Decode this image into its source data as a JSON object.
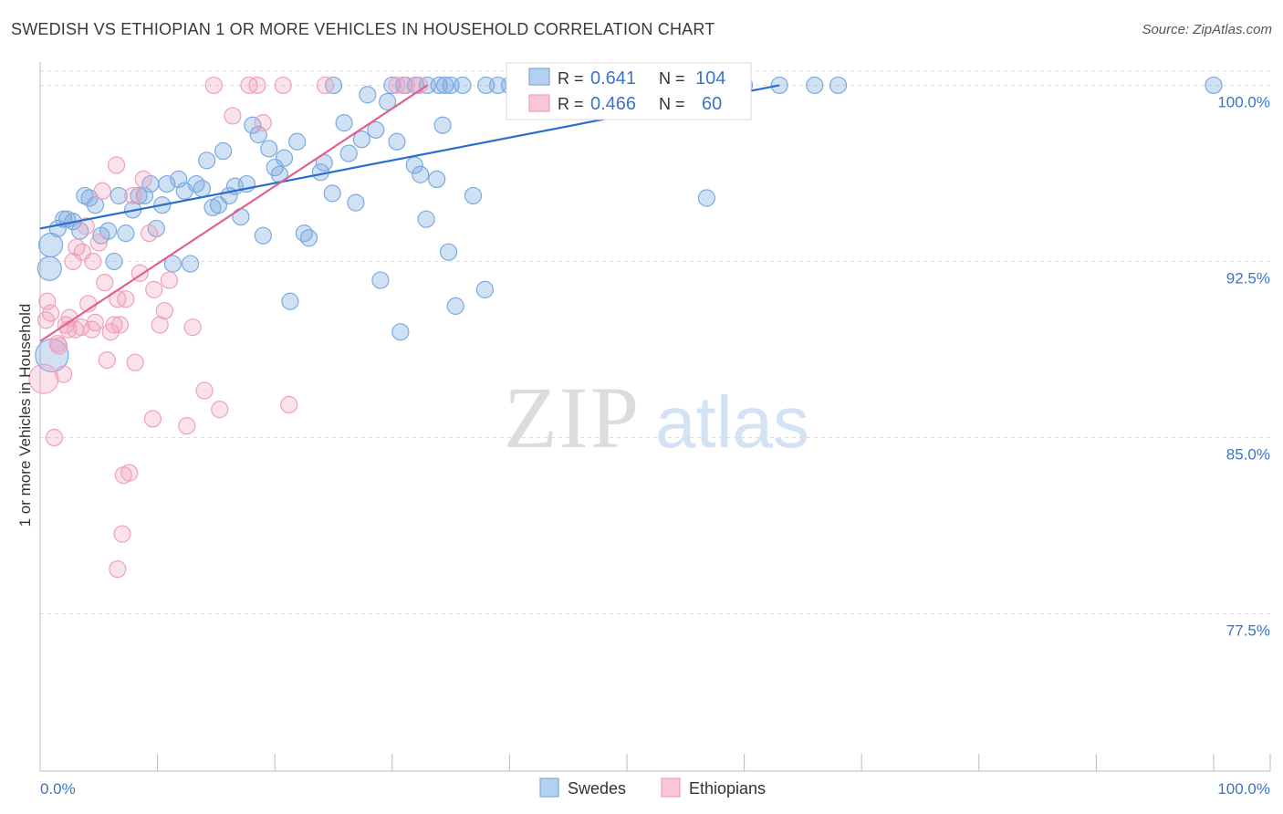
{
  "header": {
    "title": "SWEDISH VS ETHIOPIAN 1 OR MORE VEHICLES IN HOUSEHOLD CORRELATION CHART",
    "source": "Source: ZipAtlas.com"
  },
  "watermark": {
    "zip": "ZIP",
    "atlas": "atlas"
  },
  "legend_box": {
    "rows": [
      {
        "r_label": "R =",
        "r_value": "0.641",
        "n_label": "N =",
        "n_value": "104"
      },
      {
        "r_label": "R =",
        "r_value": "0.466",
        "n_label": "N =",
        "n_value": "60"
      }
    ]
  },
  "chart_data": {
    "type": "scatter",
    "title": "SWEDISH VS ETHIOPIAN 1 OR MORE VEHICLES IN HOUSEHOLD CORRELATION CHART",
    "xlabel": "",
    "ylabel": "1 or more Vehicles in Household",
    "xlim": [
      0,
      100
    ],
    "ylim": [
      70.8,
      101.3
    ],
    "x_tick_labels": [
      "0.0%",
      "100.0%"
    ],
    "y_ticks": [
      77.5,
      85.0,
      92.5,
      100.0
    ],
    "y_tick_labels": [
      "77.5%",
      "85.0%",
      "92.5%",
      "100.0%"
    ],
    "colors": {
      "swedes": "#7aaae0",
      "swedes_line": "#2a6fcc",
      "ethiopians": "#f0a0bc",
      "ethiopians_line": "#e06090",
      "axis_text": "#3b74c9"
    },
    "series": [
      {
        "name": "Swedes",
        "r": 0.641,
        "n": 104,
        "trend": [
          [
            0,
            93.9
          ],
          [
            63,
            100.0
          ]
        ],
        "points": [
          [
            0.8,
            92.2
          ],
          [
            0.9,
            93.2
          ],
          [
            1.5,
            93.9
          ],
          [
            2.0,
            94.3
          ],
          [
            2.3,
            94.3
          ],
          [
            2.8,
            94.2
          ],
          [
            3.4,
            93.8
          ],
          [
            3.8,
            95.3
          ],
          [
            4.2,
            95.2
          ],
          [
            4.7,
            94.9
          ],
          [
            5.2,
            93.6
          ],
          [
            5.8,
            93.8
          ],
          [
            6.3,
            92.5
          ],
          [
            6.7,
            95.3
          ],
          [
            7.3,
            93.7
          ],
          [
            7.9,
            94.7
          ],
          [
            8.4,
            95.3
          ],
          [
            8.9,
            95.3
          ],
          [
            9.4,
            95.8
          ],
          [
            9.9,
            93.9
          ],
          [
            10.4,
            94.9
          ],
          [
            10.8,
            95.8
          ],
          [
            11.3,
            92.4
          ],
          [
            11.8,
            96.0
          ],
          [
            12.3,
            95.5
          ],
          [
            12.8,
            92.4
          ],
          [
            13.3,
            95.8
          ],
          [
            13.8,
            95.6
          ],
          [
            14.2,
            96.8
          ],
          [
            14.7,
            94.8
          ],
          [
            15.2,
            94.9
          ],
          [
            15.6,
            97.2
          ],
          [
            16.1,
            95.3
          ],
          [
            16.6,
            95.7
          ],
          [
            17.1,
            94.4
          ],
          [
            17.6,
            95.8
          ],
          [
            18.1,
            98.3
          ],
          [
            18.6,
            97.9
          ],
          [
            19.0,
            93.6
          ],
          [
            19.5,
            97.3
          ],
          [
            20.0,
            96.5
          ],
          [
            20.4,
            96.2
          ],
          [
            20.8,
            96.9
          ],
          [
            21.3,
            90.8
          ],
          [
            21.9,
            97.6
          ],
          [
            22.5,
            93.7
          ],
          [
            22.9,
            93.5
          ],
          [
            23.9,
            96.3
          ],
          [
            24.2,
            96.7
          ],
          [
            24.9,
            95.4
          ],
          [
            25.9,
            98.4
          ],
          [
            26.3,
            97.1
          ],
          [
            26.9,
            95.0
          ],
          [
            27.4,
            97.7
          ],
          [
            27.9,
            99.6
          ],
          [
            28.6,
            98.1
          ],
          [
            29.0,
            91.7
          ],
          [
            29.6,
            99.3
          ],
          [
            30.4,
            97.6
          ],
          [
            30.7,
            89.5
          ],
          [
            31.9,
            96.6
          ],
          [
            32.4,
            96.2
          ],
          [
            32.9,
            94.3
          ],
          [
            33.8,
            96.0
          ],
          [
            34.3,
            98.3
          ],
          [
            34.8,
            92.9
          ],
          [
            35.4,
            90.6
          ],
          [
            36.9,
            95.3
          ],
          [
            37.9,
            91.3
          ],
          [
            42.8,
            100.0
          ],
          [
            53.0,
            100.0
          ],
          [
            56.8,
            95.2
          ],
          [
            63.0,
            100.0
          ],
          [
            66.0,
            100.0
          ],
          [
            68.0,
            100.0
          ],
          [
            100.0,
            100.0
          ],
          [
            25.0,
            100.0
          ],
          [
            30.0,
            100.0
          ],
          [
            34.5,
            100.0
          ],
          [
            35.0,
            100.0
          ],
          [
            40.0,
            100.0
          ],
          [
            44.0,
            100.0
          ],
          [
            49.0,
            100.0
          ],
          [
            55.0,
            100.0
          ],
          [
            60.0,
            100.0
          ],
          [
            34.0,
            100.0
          ],
          [
            33.0,
            100.0
          ],
          [
            32.0,
            100.0
          ],
          [
            31.0,
            100.0
          ],
          [
            40.5,
            100.0
          ],
          [
            41.2,
            100.0
          ],
          [
            42.0,
            100.0
          ],
          [
            43.0,
            100.0
          ],
          [
            44.5,
            100.0
          ],
          [
            45.0,
            100.0
          ],
          [
            47.0,
            100.0
          ],
          [
            50.0,
            100.0
          ],
          [
            52.0,
            100.0
          ],
          [
            54.0,
            100.0
          ],
          [
            58.0,
            100.0
          ],
          [
            36.0,
            100.0
          ],
          [
            38.0,
            100.0
          ],
          [
            39.0,
            100.0
          ],
          [
            1.0,
            88.5
          ]
        ]
      },
      {
        "name": "Ethiopians",
        "r": 0.466,
        "n": 60,
        "trend": [
          [
            0,
            89.1
          ],
          [
            33,
            100.0
          ]
        ],
        "points": [
          [
            0.3,
            87.5
          ],
          [
            0.6,
            90.8
          ],
          [
            0.9,
            90.3
          ],
          [
            1.2,
            85.0
          ],
          [
            1.6,
            88.9
          ],
          [
            2.0,
            87.7
          ],
          [
            2.2,
            89.8
          ],
          [
            2.4,
            89.6
          ],
          [
            2.8,
            92.5
          ],
          [
            3.0,
            89.6
          ],
          [
            3.1,
            93.1
          ],
          [
            3.6,
            92.9
          ],
          [
            3.9,
            94.0
          ],
          [
            4.1,
            90.7
          ],
          [
            4.5,
            92.5
          ],
          [
            4.7,
            89.9
          ],
          [
            5.0,
            93.3
          ],
          [
            5.3,
            95.5
          ],
          [
            5.5,
            91.6
          ],
          [
            5.7,
            88.3
          ],
          [
            6.0,
            89.5
          ],
          [
            6.3,
            89.8
          ],
          [
            6.6,
            90.9
          ],
          [
            6.8,
            89.8
          ],
          [
            7.1,
            83.4
          ],
          [
            7.3,
            90.9
          ],
          [
            7.6,
            83.5
          ],
          [
            7.9,
            95.3
          ],
          [
            8.1,
            88.2
          ],
          [
            8.5,
            92.0
          ],
          [
            8.8,
            96.0
          ],
          [
            9.3,
            93.7
          ],
          [
            9.6,
            85.8
          ],
          [
            10.2,
            89.8
          ],
          [
            10.6,
            90.4
          ],
          [
            11.0,
            91.7
          ],
          [
            12.5,
            85.5
          ],
          [
            13.0,
            89.7
          ],
          [
            14.0,
            87.0
          ],
          [
            14.8,
            100.0
          ],
          [
            15.3,
            86.2
          ],
          [
            16.4,
            98.7
          ],
          [
            17.8,
            100.0
          ],
          [
            18.5,
            100.0
          ],
          [
            19.0,
            98.4
          ],
          [
            20.7,
            100.0
          ],
          [
            21.2,
            86.4
          ],
          [
            6.5,
            96.6
          ],
          [
            7.0,
            80.9
          ],
          [
            6.6,
            79.4
          ],
          [
            24.3,
            100.0
          ],
          [
            30.4,
            100.0
          ],
          [
            31.2,
            100.0
          ],
          [
            32.3,
            100.0
          ],
          [
            4.4,
            89.6
          ],
          [
            3.5,
            89.7
          ],
          [
            2.5,
            90.1
          ],
          [
            0.5,
            90.0
          ],
          [
            1.5,
            89.0
          ],
          [
            9.7,
            91.3
          ]
        ]
      }
    ]
  },
  "bottom_legend": {
    "items": [
      {
        "label": "Swedes"
      },
      {
        "label": "Ethiopians"
      }
    ]
  }
}
